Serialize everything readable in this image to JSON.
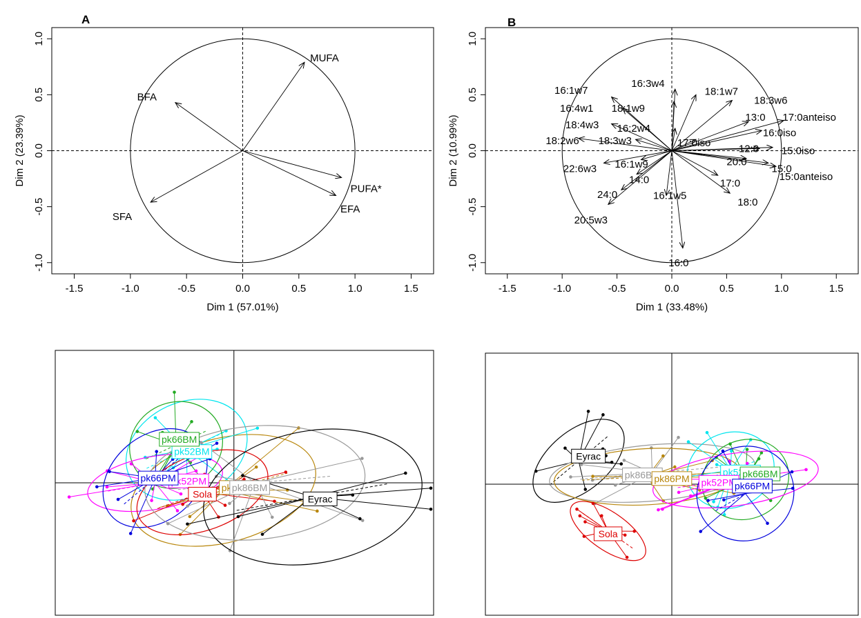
{
  "panels": {
    "A": "A",
    "B": "B"
  },
  "chart_data": [
    {
      "type": "scatter",
      "panel": "A",
      "xlabel": "Dim 1 (57.01%)",
      "ylabel": "Dim 2 (23.39%)",
      "xlim": [
        -1.7,
        1.7
      ],
      "ylim": [
        -1.1,
        1.1
      ],
      "xticks": [
        "-1.5",
        "-1.0",
        "-0.5",
        "0.0",
        "0.5",
        "1.0",
        "1.5"
      ],
      "yticks": [
        "-1.0",
        "-0.5",
        "0.0",
        "0.5",
        "1.0"
      ],
      "vectors": [
        {
          "label": "MUFA",
          "x": 0.55,
          "y": 0.79,
          "lx": 0.6,
          "ly": 0.83
        },
        {
          "label": "BFA",
          "x": -0.6,
          "y": 0.43,
          "lx": -0.94,
          "ly": 0.48
        },
        {
          "label": "PUFA*",
          "x": 0.88,
          "y": -0.24,
          "lx": 0.96,
          "ly": -0.34
        },
        {
          "label": "EFA",
          "x": 0.83,
          "y": -0.4,
          "lx": 0.87,
          "ly": -0.52
        },
        {
          "label": "SFA",
          "x": -0.82,
          "y": -0.46,
          "lx": -1.16,
          "ly": -0.59
        }
      ]
    },
    {
      "type": "scatter",
      "panel": "B",
      "xlabel": "Dim 1 (33.48%)",
      "ylabel": "Dim 2 (10.99%)",
      "xlim": [
        -1.7,
        1.7
      ],
      "ylim": [
        -1.1,
        1.1
      ],
      "xticks": [
        "-1.5",
        "-1.0",
        "-0.5",
        "0.0",
        "0.5",
        "1.0",
        "1.5"
      ],
      "yticks": [
        "-1.0",
        "-0.5",
        "0.0",
        "0.5",
        "1.0"
      ],
      "vectors": [
        {
          "label": "16:3w4",
          "x": 0.03,
          "y": 0.55,
          "lx": -0.37,
          "ly": 0.6
        },
        {
          "label": "18:1w7",
          "x": 0.22,
          "y": 0.5,
          "lx": 0.3,
          "ly": 0.53
        },
        {
          "label": "18:3w6",
          "x": 0.55,
          "y": 0.45,
          "lx": 0.75,
          "ly": 0.45
        },
        {
          "label": "16:1w7",
          "x": -0.55,
          "y": 0.48,
          "lx": -1.07,
          "ly": 0.54
        },
        {
          "label": "18:1w9",
          "x": 0.02,
          "y": 0.44,
          "lx": -0.55,
          "ly": 0.38
        },
        {
          "label": "16:4w1",
          "x": -0.45,
          "y": 0.38,
          "lx": -1.02,
          "ly": 0.38
        },
        {
          "label": "13:0",
          "x": 0.7,
          "y": 0.26,
          "lx": 0.67,
          "ly": 0.3
        },
        {
          "label": "17:0anteiso",
          "x": 1.02,
          "y": 0.27,
          "lx": 1.01,
          "ly": 0.3
        },
        {
          "label": "18:4w3",
          "x": -0.55,
          "y": 0.24,
          "lx": -0.97,
          "ly": 0.23
        },
        {
          "label": "16:2w4",
          "x": 0.03,
          "y": 0.2,
          "lx": -0.5,
          "ly": 0.2
        },
        {
          "label": "16:0iso",
          "x": 0.82,
          "y": 0.18,
          "lx": 0.83,
          "ly": 0.16
        },
        {
          "label": "18:2w6",
          "x": -0.85,
          "y": 0.11,
          "lx": -1.15,
          "ly": 0.09
        },
        {
          "label": "18:3w3",
          "x": -0.33,
          "y": 0.1,
          "lx": -0.67,
          "ly": 0.09
        },
        {
          "label": "17:0iso",
          "x": 0.22,
          "y": 0.1,
          "lx": 0.05,
          "ly": 0.07
        },
        {
          "label": "12:0",
          "x": 0.8,
          "y": 0.02,
          "lx": 0.61,
          "ly": 0.02
        },
        {
          "label": "15:0iso",
          "x": 0.92,
          "y": 0.03,
          "lx": 1.0,
          "ly": 0.0
        },
        {
          "label": "20:0",
          "x": 0.68,
          "y": -0.07,
          "lx": 0.5,
          "ly": -0.1
        },
        {
          "label": "15:0",
          "x": 0.88,
          "y": -0.11,
          "lx": 0.91,
          "ly": -0.16
        },
        {
          "label": "15:0anteiso",
          "x": 0.95,
          "y": -0.14,
          "lx": 0.98,
          "ly": -0.23
        },
        {
          "label": "22:6w3",
          "x": -0.62,
          "y": -0.11,
          "lx": -0.99,
          "ly": -0.16
        },
        {
          "label": "16:1w9",
          "x": -0.28,
          "y": -0.08,
          "lx": -0.52,
          "ly": -0.12
        },
        {
          "label": "14:0",
          "x": -0.32,
          "y": -0.21,
          "lx": -0.39,
          "ly": -0.26
        },
        {
          "label": "17:0",
          "x": 0.42,
          "y": -0.22,
          "lx": 0.44,
          "ly": -0.29
        },
        {
          "label": "24:0",
          "x": -0.46,
          "y": -0.35,
          "lx": -0.68,
          "ly": -0.39
        },
        {
          "label": "16:1w5",
          "x": -0.05,
          "y": -0.4,
          "lx": -0.17,
          "ly": -0.4
        },
        {
          "label": "18:0",
          "x": 0.53,
          "y": -0.38,
          "lx": 0.6,
          "ly": -0.46
        },
        {
          "label": "20:5w3",
          "x": -0.58,
          "y": -0.48,
          "lx": -0.89,
          "ly": -0.62
        },
        {
          "label": "16:0",
          "x": 0.1,
          "y": -0.87,
          "lx": -0.03,
          "ly": -1.0
        }
      ]
    },
    {
      "type": "scatter",
      "panel": "A-individuals",
      "xlim": [
        -1.7,
        1.9
      ],
      "ylim": [
        -1.4,
        1.4
      ],
      "groups": [
        {
          "label": "pk86PM",
          "color": "#b8860b",
          "cx": -0.1,
          "cy": -0.08,
          "rx": 0.9,
          "ry": 0.55,
          "rot": -15,
          "lx": 0.05,
          "ly": -0.05
        },
        {
          "label": "pk52BM",
          "color": "#00e5ee",
          "cx": -0.45,
          "cy": 0.35,
          "rx": 0.6,
          "ry": 0.5,
          "rot": -25,
          "lx": -0.4,
          "ly": 0.33
        },
        {
          "label": "pk66BM",
          "color": "#22aa22",
          "cx": -0.55,
          "cy": 0.4,
          "rx": 0.45,
          "ry": 0.45,
          "rot": -25,
          "lx": -0.52,
          "ly": 0.46
        },
        {
          "label": "pk52PM",
          "color": "#ff00ff",
          "cx": -0.75,
          "cy": 0.0,
          "rx": 0.65,
          "ry": 0.28,
          "rot": -10,
          "lx": -0.43,
          "ly": 0.02
        },
        {
          "label": "pk66PM",
          "color": "#0000dd",
          "cx": -0.75,
          "cy": 0.05,
          "rx": 0.55,
          "ry": 0.45,
          "rot": -40,
          "lx": -0.72,
          "ly": 0.05
        },
        {
          "label": "Sola",
          "color": "#dd0000",
          "cx": -0.3,
          "cy": -0.1,
          "rx": 0.65,
          "ry": 0.4,
          "rot": -20,
          "lx": -0.3,
          "ly": -0.12
        },
        {
          "label": "pk86BM",
          "color": "#999999",
          "cx": 0.2,
          "cy": 0.0,
          "rx": 1.05,
          "ry": 0.6,
          "rot": -5,
          "lx": 0.15,
          "ly": -0.05
        },
        {
          "label": "Eyrac",
          "color": "#000000",
          "cx": 0.75,
          "cy": -0.15,
          "rx": 1.05,
          "ry": 0.7,
          "rot": -10,
          "lx": 0.82,
          "ly": -0.17
        }
      ]
    },
    {
      "type": "scatter",
      "panel": "B-individuals",
      "xlim": [
        -1.9,
        1.9
      ],
      "ylim": [
        -1.4,
        1.4
      ],
      "groups": [
        {
          "label": "Eyrac",
          "color": "#000000",
          "cx": -0.95,
          "cy": 0.25,
          "rx": 0.55,
          "ry": 0.32,
          "rot": -40,
          "lx": -0.85,
          "ly": 0.3
        },
        {
          "label": "pk86BM",
          "color": "#999999",
          "cx": -0.2,
          "cy": 0.12,
          "rx": 1.05,
          "ry": 0.3,
          "rot": -5,
          "lx": -0.3,
          "ly": 0.1
        },
        {
          "label": "pk86PM",
          "color": "#b8860b",
          "cx": -0.25,
          "cy": 0.08,
          "rx": 0.95,
          "ry": 0.3,
          "rot": -3,
          "lx": 0.0,
          "ly": 0.06
        },
        {
          "label": "Sola",
          "color": "#dd0000",
          "cx": -0.65,
          "cy": -0.5,
          "rx": 0.45,
          "ry": 0.2,
          "rot": 35,
          "lx": -0.65,
          "ly": -0.53
        },
        {
          "label": "pk52BM",
          "color": "#00e5ee",
          "cx": 0.6,
          "cy": 0.15,
          "rx": 0.45,
          "ry": 0.4,
          "rot": -20,
          "lx": 0.7,
          "ly": 0.13
        },
        {
          "label": "pk66BM",
          "color": "#22aa22",
          "cx": 0.75,
          "cy": 0.05,
          "rx": 0.45,
          "ry": 0.42,
          "rot": -25,
          "lx": 0.9,
          "ly": 0.11
        },
        {
          "label": "pk52PM",
          "color": "#ff00ff",
          "cx": 0.65,
          "cy": 0.05,
          "rx": 0.85,
          "ry": 0.28,
          "rot": -8,
          "lx": 0.48,
          "ly": 0.02
        },
        {
          "label": "pk66PM",
          "color": "#0000dd",
          "cx": 0.75,
          "cy": -0.1,
          "rx": 0.5,
          "ry": 0.5,
          "rot": -30,
          "lx": 0.82,
          "ly": -0.02
        }
      ]
    }
  ]
}
